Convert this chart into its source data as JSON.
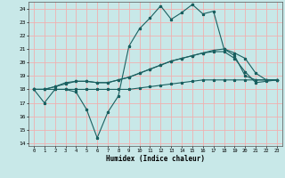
{
  "xlabel": "Humidex (Indice chaleur)",
  "bg_color": "#c8e8e8",
  "grid_color": "#f0b0b0",
  "line_color": "#1a6060",
  "xlim": [
    -0.5,
    23.5
  ],
  "ylim": [
    13.8,
    24.5
  ],
  "xticks": [
    0,
    1,
    2,
    3,
    4,
    5,
    6,
    7,
    8,
    9,
    10,
    11,
    12,
    13,
    14,
    15,
    16,
    17,
    18,
    19,
    20,
    21,
    22,
    23
  ],
  "yticks": [
    14,
    15,
    16,
    17,
    18,
    19,
    20,
    21,
    22,
    23,
    24
  ],
  "series1": [
    18,
    17,
    18,
    18,
    17.8,
    16.5,
    14.4,
    16.3,
    17.5,
    21.2,
    22.5,
    23.3,
    24.2,
    23.2,
    23.7,
    24.3,
    23.6,
    23.8,
    21.0,
    20.5,
    19.0,
    18.7,
    18.7,
    18.7
  ],
  "series2": [
    18,
    18,
    18.2,
    18.5,
    18.6,
    18.6,
    18.5,
    18.5,
    18.7,
    18.9,
    19.2,
    19.5,
    19.8,
    20.1,
    20.3,
    20.5,
    20.7,
    20.9,
    21.0,
    20.7,
    20.3,
    19.2,
    18.7,
    18.7
  ],
  "series3": [
    18,
    18,
    18.2,
    18.4,
    18.6,
    18.6,
    18.5,
    18.5,
    18.7,
    18.9,
    19.2,
    19.5,
    19.8,
    20.1,
    20.3,
    20.5,
    20.7,
    20.8,
    20.8,
    20.3,
    19.3,
    18.5,
    18.6,
    18.7
  ],
  "series4": [
    18,
    18,
    18,
    18,
    18,
    18,
    18,
    18,
    18,
    18,
    18.1,
    18.2,
    18.3,
    18.4,
    18.5,
    18.6,
    18.7,
    18.7,
    18.7,
    18.7,
    18.7,
    18.7,
    18.7,
    18.7
  ]
}
